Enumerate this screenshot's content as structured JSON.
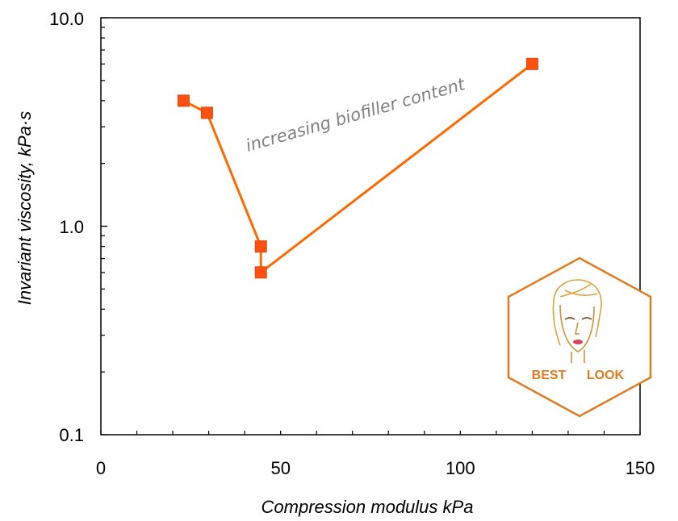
{
  "chart_data": {
    "type": "scatter",
    "x": [
      23,
      29.5,
      44.5,
      44.5,
      120
    ],
    "y": [
      4.0,
      3.5,
      0.8,
      0.6,
      6.0
    ],
    "series": [
      {
        "x": [
          23,
          29.5,
          44.5,
          44.5,
          120
        ],
        "values": [
          4.0,
          3.5,
          0.8,
          0.6,
          6.0
        ]
      }
    ],
    "connected": true,
    "marker": "square",
    "title": "",
    "xlabel": "Compression modulus  kPa",
    "ylabel": "Invariant viscosity, kPa·s",
    "xlim": [
      0,
      150
    ],
    "ylim": [
      0.1,
      10
    ],
    "yscale": "log",
    "x_ticks": [
      "0",
      "50",
      "100",
      "150"
    ],
    "y_ticks": [
      "0.1",
      "1.0",
      "10.0"
    ],
    "grid": false,
    "legend": "none",
    "annotation": "increasing biofiller content",
    "colors": {
      "series": "#ff6a00",
      "marker_fill": "#ff5010",
      "annotation": "#808080"
    }
  },
  "logo": {
    "text_left": "BEST",
    "text_right": "LOOK",
    "color": "#e07b1f",
    "icon": "woman-face-icon"
  }
}
